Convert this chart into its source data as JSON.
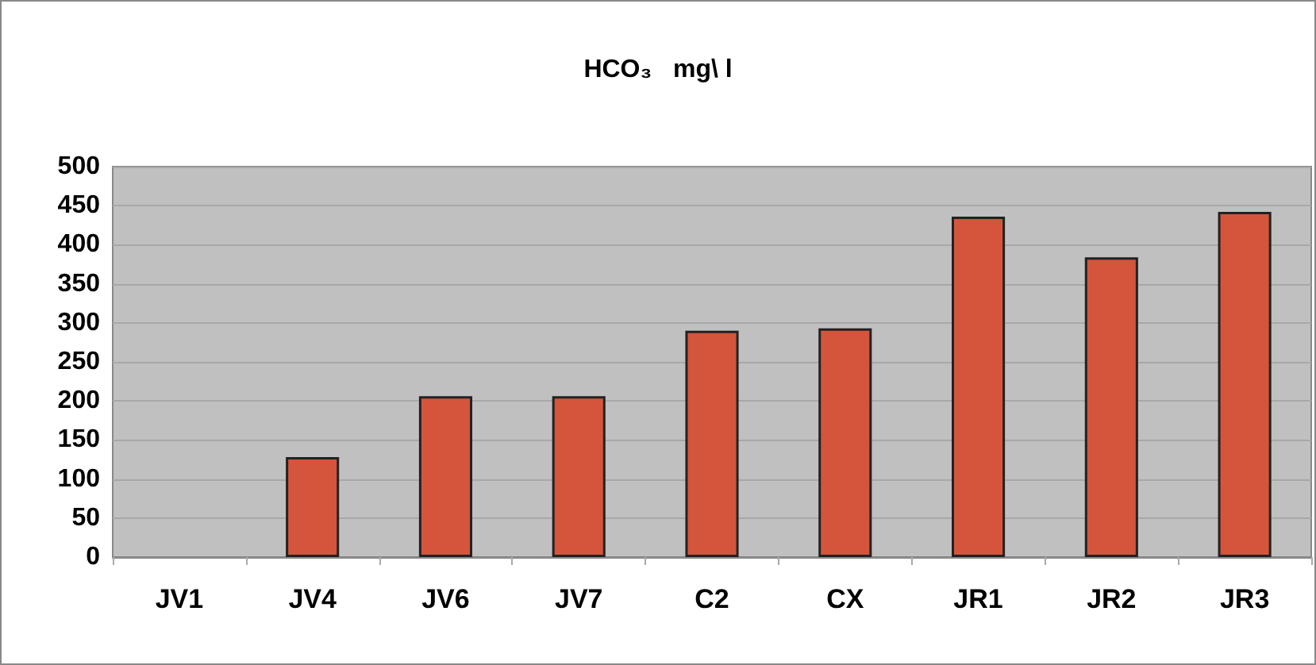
{
  "chart_data": {
    "type": "bar",
    "title": "HCO₃   mg\\ l",
    "categories": [
      "JV1",
      "JV4",
      "JV6",
      "JV7",
      "C2",
      "CX",
      "JR1",
      "JR2",
      "JR3"
    ],
    "values": [
      null,
      128,
      206,
      206,
      290,
      293,
      436,
      384,
      442
    ],
    "color": "#d4553c",
    "ylim": [
      0,
      500
    ],
    "yticks": [
      0,
      50,
      100,
      150,
      200,
      250,
      300,
      350,
      400,
      450,
      500
    ],
    "grid": "y"
  }
}
